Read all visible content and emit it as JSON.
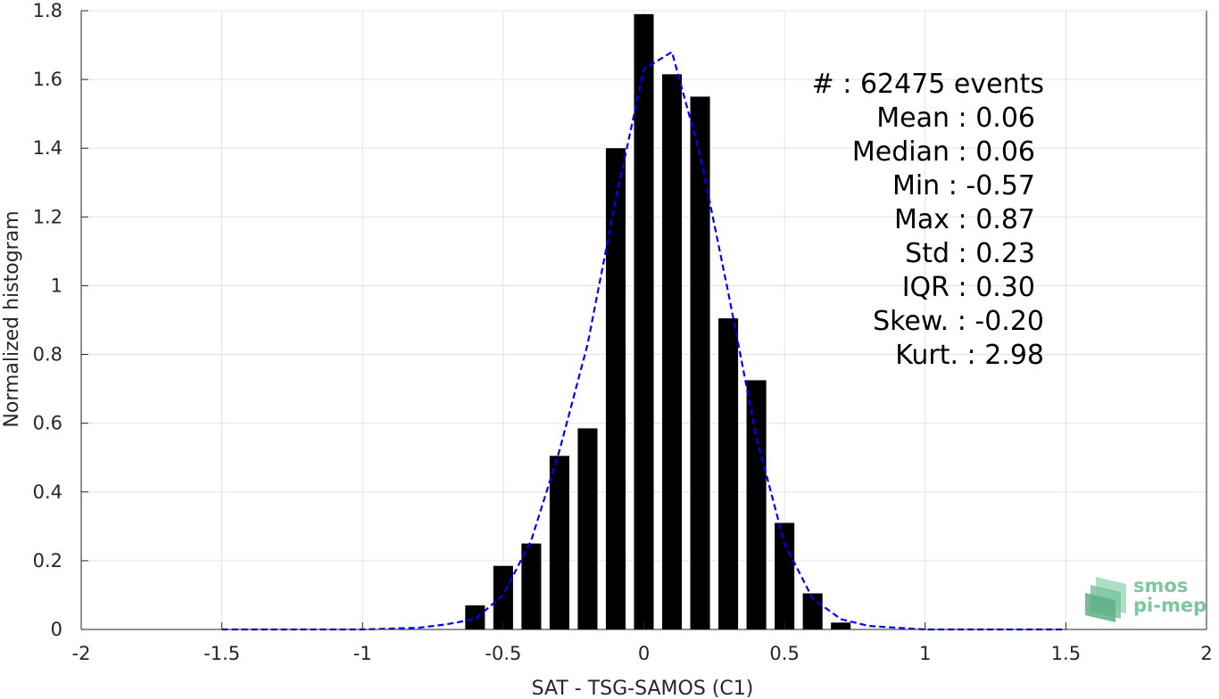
{
  "chart_data": {
    "type": "bar",
    "xlabel": "SAT - TSG-SAMOS (C1)",
    "ylabel": "Normalized histogram",
    "xlim": [
      -2,
      2
    ],
    "ylim": [
      0,
      1.8
    ],
    "x_ticks": [
      -2,
      -1.5,
      -1,
      -0.5,
      0,
      0.5,
      1,
      1.5,
      2
    ],
    "x_tick_labels": [
      "-2",
      "-1.5",
      "-1",
      "-0.5",
      "0",
      "0.5",
      "1",
      "1.5",
      "2"
    ],
    "y_ticks": [
      0,
      0.2,
      0.4,
      0.6,
      0.8,
      1,
      1.2,
      1.4,
      1.6,
      1.8
    ],
    "y_tick_labels": [
      "0",
      "0.2",
      "0.4",
      "0.6",
      "0.8",
      "1",
      "1.2",
      "1.4",
      "1.6",
      "1.8"
    ],
    "grid": true,
    "bar_width": 0.07,
    "series": [
      {
        "type": "bar",
        "color": "#000000",
        "x": [
          -0.6,
          -0.5,
          -0.4,
          -0.3,
          -0.2,
          -0.1,
          0.0,
          0.1,
          0.2,
          0.3,
          0.4,
          0.5,
          0.6,
          0.7
        ],
        "values": [
          0.07,
          0.185,
          0.25,
          0.505,
          0.585,
          1.4,
          1.79,
          1.615,
          1.55,
          0.905,
          0.725,
          0.31,
          0.105,
          0.02
        ]
      },
      {
        "type": "line",
        "style": "dashed",
        "color": "#0000ff",
        "x": [
          -1.5,
          -1.0,
          -0.8,
          -0.7,
          -0.6,
          -0.5,
          -0.4,
          -0.3,
          -0.2,
          -0.1,
          0.0,
          0.1,
          0.2,
          0.3,
          0.4,
          0.5,
          0.6,
          0.7,
          0.8,
          1.0,
          1.5
        ],
        "values": [
          0.0,
          0.0,
          0.005,
          0.015,
          0.03,
          0.1,
          0.26,
          0.52,
          0.83,
          1.25,
          1.63,
          1.68,
          1.38,
          0.98,
          0.56,
          0.25,
          0.09,
          0.03,
          0.01,
          0.0,
          0.0
        ]
      }
    ],
    "stats": [
      {
        "label": "#  : 62475 events"
      },
      {
        "label": "Mean : 0.06"
      },
      {
        "label": "Median : 0.06"
      },
      {
        "label": "Min : -0.57"
      },
      {
        "label": "Max : 0.87"
      },
      {
        "label": "Std : 0.23"
      },
      {
        "label": "IQR : 0.30"
      },
      {
        "label": "Skew. : -0.20"
      },
      {
        "label": "Kurt. : 2.98"
      }
    ]
  },
  "logo": {
    "line1": "smos",
    "line2": "pi-mep",
    "color": "#7cc7a0",
    "color_dark": "#5fae86"
  }
}
